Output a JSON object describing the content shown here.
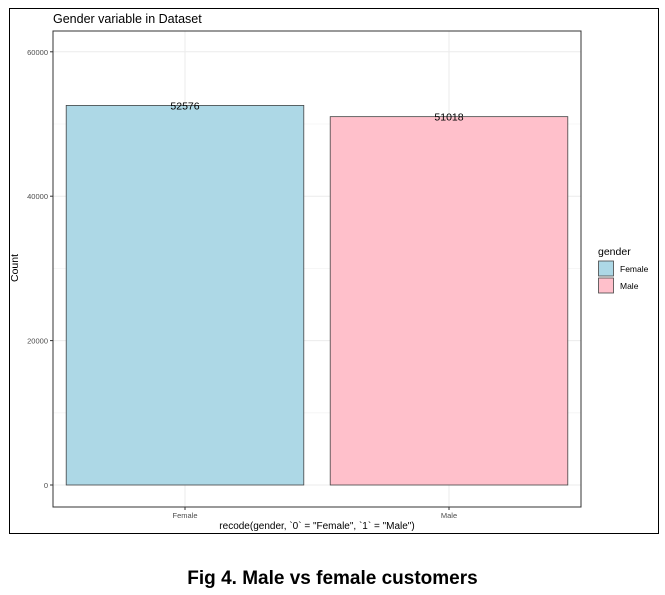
{
  "figure": {
    "caption": "Fig 4. Male vs female customers"
  },
  "chart_data": {
    "type": "bar",
    "title": "Gender variable in Dataset",
    "xlabel": "recode(gender, `0` = \"Female\", `1` = \"Male\")",
    "ylabel": "Count",
    "categories": [
      "Female",
      "Male"
    ],
    "values": [
      52576,
      51018
    ],
    "data_labels": [
      "52576",
      "51018"
    ],
    "ylim": [
      0,
      62500
    ],
    "yticks": [
      0,
      20000,
      40000,
      60000
    ],
    "ytick_labels": [
      "0",
      "20000",
      "40000",
      "60000"
    ],
    "grid": true,
    "legend": {
      "title": "gender",
      "placement": "right",
      "entries": [
        "Female",
        "Male"
      ]
    },
    "colors": {
      "Female": "#add8e6",
      "Male": "#ffc0cb",
      "bar_outline": "#444444",
      "grid_major": "#ebebeb",
      "grid_minor": "#f4f4f4",
      "panel_border": "#333333"
    }
  }
}
